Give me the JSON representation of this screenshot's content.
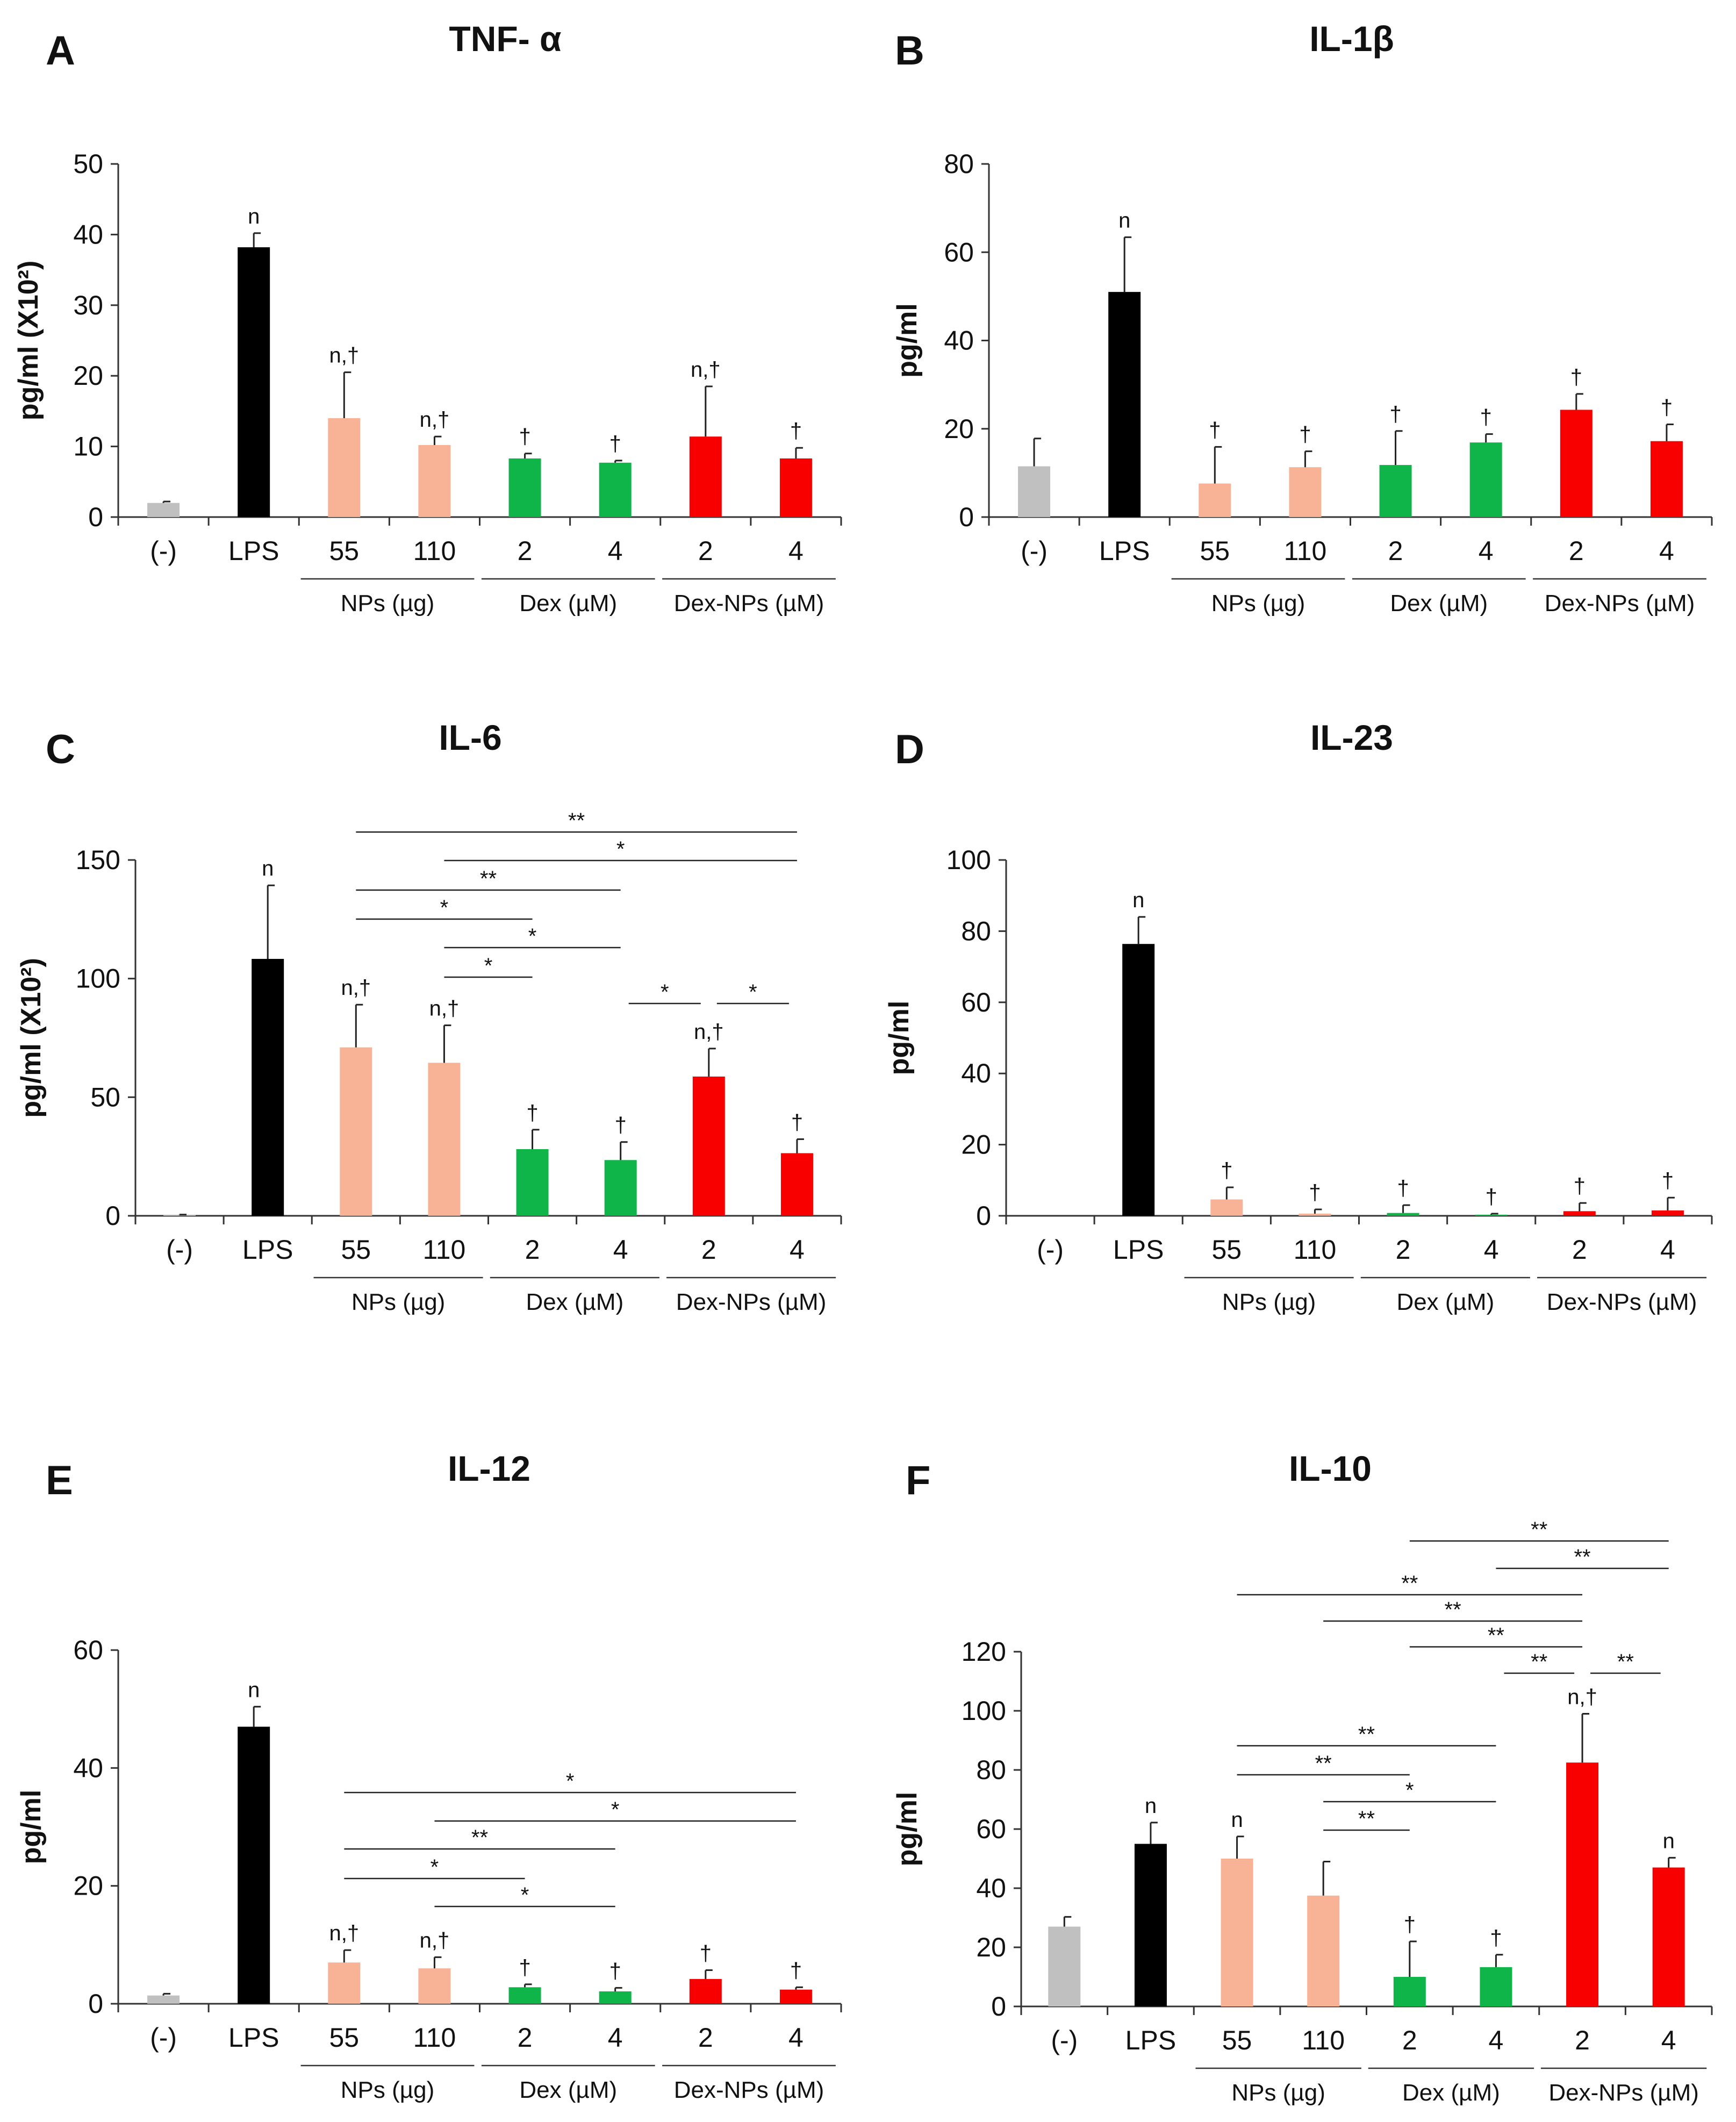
{
  "colors": {
    "neg": "#c0c0c0",
    "lps": "#000000",
    "nps": "#f8b296",
    "dex": "#10b54a",
    "dexnps": "#f80000",
    "axis": "#333333"
  },
  "chart_data": [
    {
      "panel": "A",
      "type": "bar",
      "title": "TNF- α",
      "ylabel": "pg/ml (X10²)",
      "ylim": [
        0,
        50
      ],
      "yticks": [
        0,
        10,
        20,
        30,
        40,
        50
      ],
      "categories": [
        "(-)",
        "LPS",
        "55",
        "110",
        "2",
        "4",
        "2",
        "4"
      ],
      "colors": [
        "neg",
        "lps",
        "nps",
        "nps",
        "dex",
        "dex",
        "dexnps",
        "dexnps"
      ],
      "values": [
        2,
        38.2,
        14,
        10.2,
        8.3,
        7.7,
        11.4,
        8.3
      ],
      "errors": [
        0.2,
        2,
        6.5,
        1.2,
        0.7,
        0.3,
        7.1,
        1.5
      ],
      "annotations": [
        "",
        "n",
        "n,†",
        "n,†",
        "†",
        "†",
        "n,†",
        "†"
      ],
      "groups": [
        {
          "label": "NPs (µg)",
          "from": 2,
          "to": 3
        },
        {
          "label": "Dex (µM)",
          "from": 4,
          "to": 5
        },
        {
          "label": "Dex-NPs (µM)",
          "from": 6,
          "to": 7
        }
      ],
      "significance": []
    },
    {
      "panel": "B",
      "type": "bar",
      "title": "IL-1β",
      "ylabel": "pg/ml",
      "ylim": [
        0,
        80
      ],
      "yticks": [
        0,
        20,
        40,
        60,
        80
      ],
      "categories": [
        "(-)",
        "LPS",
        "55",
        "110",
        "2",
        "4",
        "2",
        "4"
      ],
      "colors": [
        "neg",
        "lps",
        "nps",
        "nps",
        "dex",
        "dex",
        "dexnps",
        "dexnps"
      ],
      "values": [
        11.5,
        51,
        7.6,
        11.3,
        11.8,
        16.9,
        24.3,
        17.2
      ],
      "errors": [
        6.3,
        12.4,
        8.3,
        3.6,
        7.7,
        1.9,
        3.6,
        3.8
      ],
      "annotations": [
        "",
        "n",
        "†",
        "†",
        "†",
        "†",
        "†",
        "†"
      ],
      "groups": [
        {
          "label": "NPs (µg)",
          "from": 2,
          "to": 3
        },
        {
          "label": "Dex (µM)",
          "from": 4,
          "to": 5
        },
        {
          "label": "Dex-NPs (µM)",
          "from": 6,
          "to": 7
        }
      ],
      "significance": []
    },
    {
      "panel": "C",
      "type": "bar",
      "title": "IL-6",
      "ylabel": "pg/ml (X10²)",
      "ylim": [
        0,
        150
      ],
      "yticks": [
        0,
        50,
        100,
        150
      ],
      "categories": [
        "(-)",
        "LPS",
        "55",
        "110",
        "2",
        "4",
        "2",
        "4"
      ],
      "colors": [
        "neg",
        "lps",
        "nps",
        "nps",
        "dex",
        "dex",
        "dexnps",
        "dexnps"
      ],
      "values": [
        0.3,
        108.3,
        71,
        64.5,
        28.1,
        23.5,
        58.7,
        26.4
      ],
      "errors": [
        0.2,
        31,
        18,
        15.8,
        8.2,
        7.6,
        11.8,
        5.9
      ],
      "annotations": [
        "",
        "n",
        "n,†",
        "n,†",
        "†",
        "†",
        "n,†",
        "†"
      ],
      "groups": [
        {
          "label": "NPs (µg)",
          "from": 2,
          "to": 3
        },
        {
          "label": "Dex (µM)",
          "from": 4,
          "to": 5
        },
        {
          "label": "Dex-NPs (µM)",
          "from": 6,
          "to": 7
        }
      ],
      "significance": [
        {
          "from": 2,
          "to": 7,
          "label": "**"
        },
        {
          "from": 3,
          "to": 7,
          "label": "*"
        },
        {
          "from": 2,
          "to": 5,
          "label": "**"
        },
        {
          "from": 2,
          "to": 4,
          "label": "*"
        },
        {
          "from": 3,
          "to": 5,
          "label": "*"
        },
        {
          "from": 3,
          "to": 4,
          "label": "*"
        },
        {
          "from": 5,
          "to": 6,
          "label": "*"
        },
        {
          "from": 6,
          "to": 7,
          "label": "*"
        }
      ]
    },
    {
      "panel": "D",
      "type": "bar",
      "title": "IL-23",
      "ylabel": "pg/ml",
      "ylim": [
        0,
        100
      ],
      "yticks": [
        0,
        20,
        40,
        60,
        80,
        100
      ],
      "categories": [
        "(-)",
        "LPS",
        "55",
        "110",
        "2",
        "4",
        "2",
        "4"
      ],
      "colors": [
        "neg",
        "lps",
        "nps",
        "nps",
        "dex",
        "dex",
        "dexnps",
        "dexnps"
      ],
      "values": [
        0,
        76.4,
        4.6,
        0.6,
        0.8,
        0.3,
        1.3,
        1.5
      ],
      "errors": [
        0,
        7.6,
        3.4,
        1.2,
        2.2,
        0.3,
        2.3,
        3.6
      ],
      "annotations": [
        "",
        "n",
        "†",
        "†",
        "†",
        "†",
        "†",
        "†"
      ],
      "groups": [
        {
          "label": "NPs (µg)",
          "from": 2,
          "to": 3
        },
        {
          "label": "Dex (µM)",
          "from": 4,
          "to": 5
        },
        {
          "label": "Dex-NPs (µM)",
          "from": 6,
          "to": 7
        }
      ],
      "significance": []
    },
    {
      "panel": "E",
      "type": "bar",
      "title": "IL-12",
      "ylabel": "pg/ml",
      "ylim": [
        0,
        60
      ],
      "yticks": [
        0,
        20,
        40,
        60
      ],
      "categories": [
        "(-)",
        "LPS",
        "55",
        "110",
        "2",
        "4",
        "2",
        "4"
      ],
      "colors": [
        "neg",
        "lps",
        "nps",
        "nps",
        "dex",
        "dex",
        "dexnps",
        "dexnps"
      ],
      "values": [
        1.4,
        47,
        7,
        6,
        2.8,
        2.1,
        4.2,
        2.4
      ],
      "errors": [
        0.3,
        3.4,
        2.1,
        1.9,
        0.5,
        0.6,
        1.5,
        0.4
      ],
      "annotations": [
        "",
        "n",
        "n,†",
        "n,†",
        "†",
        "†",
        "†",
        "†"
      ],
      "groups": [
        {
          "label": "NPs (µg)",
          "from": 2,
          "to": 3
        },
        {
          "label": "Dex (µM)",
          "from": 4,
          "to": 5
        },
        {
          "label": "Dex-NPs (µM)",
          "from": 6,
          "to": 7
        }
      ],
      "significance": [
        {
          "from": 2,
          "to": 7,
          "label": "*"
        },
        {
          "from": 3,
          "to": 7,
          "label": "*"
        },
        {
          "from": 2,
          "to": 5,
          "label": "**"
        },
        {
          "from": 2,
          "to": 4,
          "label": "*"
        },
        {
          "from": 3,
          "to": 5,
          "label": "*"
        }
      ]
    },
    {
      "panel": "F",
      "type": "bar",
      "title": "IL-10",
      "ylabel": "pg/ml",
      "ylim": [
        0,
        120
      ],
      "yticks": [
        0,
        20,
        40,
        60,
        80,
        100,
        120
      ],
      "categories": [
        "(-)",
        "LPS",
        "55",
        "110",
        "2",
        "4",
        "2",
        "4"
      ],
      "colors": [
        "neg",
        "lps",
        "nps",
        "nps",
        "dex",
        "dex",
        "dexnps",
        "dexnps"
      ],
      "values": [
        27,
        55,
        50,
        37.5,
        10,
        13.3,
        82.5,
        47
      ],
      "errors": [
        3.3,
        7.2,
        7.5,
        11.5,
        12,
        4.2,
        16.5,
        3.3
      ],
      "annotations": [
        "",
        "n",
        "n",
        "",
        "†",
        "†",
        "n,†",
        "n"
      ],
      "groups": [
        {
          "label": "NPs (µg)",
          "from": 2,
          "to": 3
        },
        {
          "label": "Dex (µM)",
          "from": 4,
          "to": 5
        },
        {
          "label": "Dex-NPs (µM)",
          "from": 6,
          "to": 7
        }
      ],
      "significance": [
        {
          "from": 4,
          "to": 7,
          "label": "**"
        },
        {
          "from": 5,
          "to": 7,
          "label": "**"
        },
        {
          "from": 2,
          "to": 6,
          "label": "**"
        },
        {
          "from": 3,
          "to": 6,
          "label": "**"
        },
        {
          "from": 4,
          "to": 6,
          "label": "**"
        },
        {
          "from": 5,
          "to": 6,
          "label": "**"
        },
        {
          "from": 6,
          "to": 7,
          "label": "**"
        },
        {
          "from": 2,
          "to": 5,
          "label": "**"
        },
        {
          "from": 2,
          "to": 4,
          "label": "**"
        },
        {
          "from": 3,
          "to": 5,
          "label": "*"
        },
        {
          "from": 3,
          "to": 4,
          "label": "**"
        }
      ]
    }
  ]
}
